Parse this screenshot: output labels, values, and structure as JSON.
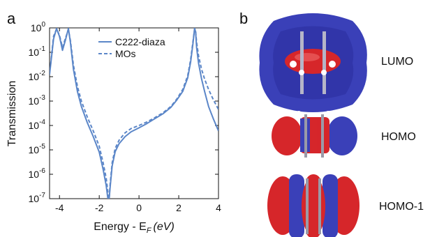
{
  "panel_a": {
    "letter": "a"
  },
  "panel_b": {
    "letter": "b"
  },
  "chart_data": {
    "type": "line",
    "xlabel": "Energy - E",
    "xlabel_sub": "F",
    "xlabel_unit": "(eV)",
    "ylabel": "Transmission",
    "xlim": [
      -4.5,
      4.0
    ],
    "ylim_log10": [
      -7,
      0
    ],
    "y_scale": "log",
    "x_ticks": [
      -4,
      -2,
      0,
      2,
      4
    ],
    "y_ticks_exp": [
      0,
      -1,
      -2,
      -3,
      -4,
      -5,
      -6,
      -7
    ],
    "legend_position": "top-right",
    "series": [
      {
        "name": "C222-diaza",
        "style": "solid",
        "color": "#5b86c8",
        "x": [
          -4.5,
          -4.3,
          -4.15,
          -4.0,
          -3.85,
          -3.7,
          -3.55,
          -3.45,
          -3.3,
          -3.1,
          -2.9,
          -2.6,
          -2.3,
          -2.0,
          -1.8,
          -1.65,
          -1.55,
          -1.5,
          -1.45,
          -1.35,
          -1.2,
          -1.0,
          -0.7,
          -0.4,
          0.0,
          0.4,
          0.8,
          1.2,
          1.6,
          1.9,
          2.2,
          2.45,
          2.6,
          2.72,
          2.8,
          2.85,
          2.9,
          3.0,
          3.15,
          3.3,
          3.5,
          3.75,
          4.0
        ],
        "y": [
          0.012,
          0.35,
          0.95,
          0.45,
          0.12,
          0.32,
          0.95,
          0.25,
          0.02,
          0.0025,
          0.0006,
          0.00013,
          3.5e-05,
          8e-06,
          1.5e-06,
          3.5e-07,
          8e-08,
          1e-07,
          3e-07,
          2.2e-06,
          8.5e-06,
          1.8e-05,
          3.5e-05,
          5.5e-05,
          8e-05,
          0.00012,
          0.00019,
          0.0003,
          0.00055,
          0.0011,
          0.0025,
          0.009,
          0.04,
          0.25,
          1.0,
          0.65,
          0.15,
          0.035,
          0.008,
          0.0025,
          0.0006,
          0.00018,
          6e-05
        ]
      },
      {
        "name": "MOs",
        "style": "dashed",
        "color": "#5b86c8",
        "x": [
          -4.45,
          -4.3,
          -4.15,
          -4.0,
          -3.85,
          -3.7,
          -3.55,
          -3.45,
          -3.3,
          -3.1,
          -2.9,
          -2.6,
          -2.3,
          -2.0,
          -1.8,
          -1.65,
          -1.55,
          -1.5,
          -1.45,
          -1.35,
          -1.2,
          -1.0,
          -0.7,
          -0.4,
          0.0,
          0.4,
          0.8,
          1.2,
          1.6,
          1.9,
          2.2,
          2.45,
          2.6,
          2.72,
          2.8,
          2.85,
          2.9,
          3.0,
          3.15,
          3.3,
          3.5,
          3.75,
          4.0
        ],
        "y": [
          0.03,
          0.45,
          0.9,
          0.5,
          0.16,
          0.38,
          0.85,
          0.3,
          0.03,
          0.004,
          0.001,
          0.00022,
          6e-05,
          1.4e-05,
          2.8e-06,
          7e-07,
          1.5e-07,
          1e-07,
          4e-07,
          3e-06,
          1.15e-05,
          2.5e-05,
          5e-05,
          7.5e-05,
          0.0001,
          0.00014,
          0.00021,
          0.00033,
          0.0006,
          0.0012,
          0.003,
          0.011,
          0.05,
          0.3,
          0.9,
          0.7,
          0.25,
          0.07,
          0.02,
          0.008,
          0.003,
          0.0011,
          0.00045
        ]
      }
    ]
  },
  "orbitals": [
    {
      "label": "LUMO"
    },
    {
      "label": "HOMO"
    },
    {
      "label": "HOMO-1"
    }
  ],
  "colors": {
    "positive_lobe": "#d6262a",
    "negative_lobe": "#3a40b8",
    "line": "#5b86c8"
  }
}
